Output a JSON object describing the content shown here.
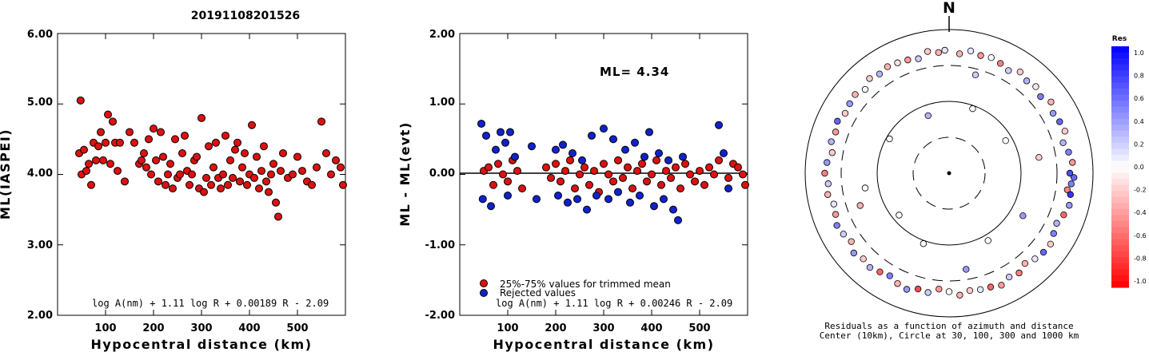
{
  "page_title": "20191108201526",
  "chart_data": [
    {
      "type": "scatter",
      "xlabel": "Hypocentral distance (km)",
      "ylabel": "ML(IASPEI)",
      "xlim": [
        0,
        600
      ],
      "ylim": [
        2.0,
        6.0
      ],
      "x_ticks": [
        "100",
        "200",
        "300",
        "400",
        "500"
      ],
      "y_ticks": [
        "2.00",
        "3.00",
        "4.00",
        "5.00",
        "6.00"
      ],
      "formula": "log A(nm) + 1.11 log R + 0.00189 R - 2.09",
      "marker_color": "#dd1111",
      "series": [
        {
          "x": [
            45,
            48,
            50,
            55,
            60,
            65,
            70,
            75,
            80,
            85,
            90,
            95,
            100,
            105,
            110,
            115,
            120,
            125,
            130,
            140,
            150,
            160,
            170,
            175,
            180,
            185,
            190,
            195,
            200,
            205,
            210,
            215,
            220,
            225,
            230,
            235,
            240,
            245,
            250,
            255,
            260,
            265,
            270,
            275,
            280,
            285,
            290,
            295,
            300,
            305,
            310,
            315,
            320,
            325,
            330,
            335,
            340,
            345,
            350,
            355,
            360,
            365,
            370,
            375,
            380,
            385,
            390,
            395,
            400,
            405,
            410,
            415,
            420,
            425,
            430,
            435,
            440,
            445,
            450,
            455,
            460,
            465,
            470,
            480,
            490,
            500,
            510,
            520,
            530,
            540,
            550,
            560,
            570,
            580,
            590,
            595
          ],
          "y": [
            4.3,
            5.05,
            4.0,
            4.35,
            4.05,
            4.15,
            3.85,
            4.45,
            4.2,
            4.4,
            4.6,
            4.2,
            4.45,
            4.85,
            4.15,
            4.75,
            4.45,
            4.05,
            4.45,
            3.9,
            4.6,
            4.45,
            4.15,
            4.2,
            4.3,
            4.1,
            4.5,
            4.0,
            4.65,
            4.2,
            3.9,
            4.6,
            4.25,
            3.85,
            4.0,
            4.15,
            3.8,
            4.5,
            3.95,
            4.0,
            4.3,
            4.55,
            4.05,
            3.85,
            4.0,
            4.2,
            4.25,
            3.8,
            4.8,
            3.75,
            3.95,
            4.4,
            3.85,
            4.1,
            4.45,
            3.95,
            3.8,
            4.0,
            4.55,
            3.85,
            4.2,
            3.95,
            4.35,
            4.45,
            3.9,
            4.1,
            4.3,
            3.85,
            4.0,
            4.7,
            3.95,
            4.25,
            3.8,
            4.05,
            4.4,
            3.9,
            3.75,
            4.0,
            4.15,
            3.6,
            3.4,
            4.05,
            4.3,
            3.95,
            4.0,
            4.25,
            4.05,
            3.9,
            3.85,
            4.1,
            4.75,
            4.3,
            4.0,
            4.2,
            4.1,
            3.85
          ]
        }
      ]
    },
    {
      "type": "scatter",
      "xlabel": "Hypocentral distance (km)",
      "ylabel": "ML - ML(evt)",
      "xlim": [
        0,
        600
      ],
      "ylim": [
        -2.0,
        2.0
      ],
      "x_ticks": [
        "100",
        "200",
        "300",
        "400",
        "500"
      ],
      "y_ticks": [
        "-2.00",
        "-1.00",
        "0.00",
        "1.00",
        "2.00"
      ],
      "annotation": "ML= 4.34",
      "formula": "log A(nm) + 1.11 log R + 0.00246 R - 2.09",
      "legend": [
        "25%-75% values for trimmed mean",
        "Rejected values"
      ],
      "legend_position": "bottom-left",
      "series": [
        {
          "name": "25%-75% values for trimmed mean",
          "color": "#dd1111",
          "x": [
            50,
            60,
            70,
            80,
            90,
            100,
            110,
            120,
            130,
            180,
            190,
            200,
            210,
            220,
            230,
            240,
            250,
            260,
            270,
            280,
            290,
            300,
            310,
            320,
            330,
            340,
            350,
            360,
            370,
            380,
            390,
            400,
            410,
            420,
            430,
            440,
            450,
            460,
            470,
            480,
            490,
            500,
            510,
            520,
            530,
            540,
            560,
            570,
            580,
            590,
            595
          ],
          "y": [
            0.05,
            0.1,
            -0.15,
            0.15,
            0.0,
            -0.1,
            0.2,
            0.05,
            -0.2,
            0.1,
            -0.05,
            0.15,
            -0.1,
            0.05,
            0.2,
            -0.2,
            0.0,
            0.1,
            -0.15,
            0.05,
            -0.25,
            0.15,
            0.0,
            -0.1,
            0.2,
            -0.05,
            0.1,
            -0.2,
            0.05,
            0.15,
            -0.1,
            0.0,
            0.2,
            -0.15,
            0.05,
            -0.05,
            0.1,
            -0.2,
            0.15,
            0.0,
            -0.1,
            0.05,
            -0.15,
            0.1,
            0.0,
            0.2,
            -0.05,
            0.15,
            0.1,
            0.0,
            -0.15
          ]
        },
        {
          "name": "Rejected values",
          "color": "#1122cc",
          "x": [
            45,
            48,
            55,
            65,
            75,
            85,
            95,
            100,
            105,
            115,
            150,
            160,
            200,
            205,
            215,
            225,
            235,
            245,
            255,
            265,
            275,
            285,
            300,
            310,
            320,
            330,
            345,
            355,
            365,
            375,
            385,
            395,
            405,
            415,
            425,
            435,
            445,
            455,
            465,
            540,
            550,
            560
          ],
          "y": [
            0.72,
            -0.35,
            0.55,
            -0.45,
            0.35,
            0.6,
            0.45,
            -0.3,
            0.6,
            0.25,
            0.4,
            -0.35,
            0.35,
            -0.3,
            0.42,
            -0.4,
            0.3,
            -0.35,
            0.2,
            -0.5,
            0.55,
            -0.3,
            0.65,
            -0.35,
            0.5,
            -0.25,
            0.35,
            -0.4,
            0.45,
            -0.3,
            0.25,
            0.6,
            -0.45,
            0.3,
            -0.35,
            0.2,
            -0.5,
            -0.65,
            0.25,
            0.7,
            0.3,
            -0.2
          ]
        }
      ]
    },
    {
      "type": "scatter",
      "subtype": "polar",
      "north_label": "N",
      "caption_lines": [
        "Residuals as a function of azimuth and distance",
        "Center (10km), Circle at 30, 100, 300 and 1000 km"
      ],
      "colorbar_title": "Res",
      "colorbar_ticks": [
        "1.0",
        "0.8",
        "0.6",
        "0.4",
        "0.2",
        "0.0",
        "-0.2",
        "-0.4",
        "-0.6",
        "-0.8",
        "-1.0"
      ],
      "colorbar_range": [
        -1.0,
        1.0
      ],
      "color_negative": "#ff0000",
      "color_positive": "#0000ff",
      "stations": {
        "azimuth_deg": [
          5,
          10,
          15,
          20,
          25,
          30,
          35,
          40,
          45,
          50,
          55,
          60,
          65,
          70,
          75,
          80,
          85,
          90,
          92,
          95,
          98,
          100,
          105,
          110,
          115,
          120,
          125,
          130,
          135,
          140,
          145,
          150,
          155,
          160,
          165,
          170,
          175,
          180,
          185,
          190,
          195,
          200,
          205,
          210,
          215,
          220,
          225,
          230,
          235,
          240,
          245,
          250,
          255,
          260,
          265,
          270,
          275,
          280,
          285,
          290,
          295,
          300,
          305,
          310,
          315,
          320,
          325,
          330,
          335,
          340,
          345,
          350,
          355,
          358,
          20,
          60,
          120,
          150,
          200,
          230,
          260,
          300,
          340,
          15,
          80,
          170,
          250
        ],
        "distance_km": [
          450,
          520,
          480,
          500,
          470,
          430,
          510,
          460,
          490,
          440,
          520,
          450,
          480,
          500,
          420,
          470,
          510,
          460,
          530,
          490,
          440,
          500,
          520,
          480,
          430,
          460,
          510,
          500,
          470,
          420,
          480,
          450,
          510,
          470,
          460,
          440,
          490,
          430,
          400,
          470,
          450,
          510,
          480,
          430,
          460,
          500,
          470,
          520,
          440,
          480,
          510,
          460,
          440,
          500,
          470,
          520,
          490,
          430,
          480,
          460,
          500,
          450,
          470,
          490,
          430,
          510,
          470,
          500,
          480,
          460,
          430,
          510,
          470,
          500,
          90,
          80,
          150,
          120,
          110,
          80,
          150,
          90,
          70,
          250,
          180,
          220,
          200
        ],
        "residual": [
          -0.3,
          0.1,
          -0.4,
          0.0,
          -0.5,
          0.2,
          -0.2,
          0.3,
          -0.1,
          0.5,
          -0.3,
          0.4,
          0.6,
          -0.2,
          0.3,
          0.5,
          -0.4,
          0.7,
          0.6,
          0.5,
          -0.5,
          0.8,
          0.4,
          -0.6,
          0.3,
          0.5,
          -0.2,
          0.6,
          0.1,
          -0.3,
          -0.5,
          0.2,
          -0.4,
          -0.6,
          0.1,
          -0.2,
          -0.3,
          0.0,
          -0.4,
          0.2,
          -0.7,
          0.4,
          -0.3,
          0.5,
          -0.6,
          0.3,
          -0.2,
          0.4,
          -0.3,
          0.2,
          0.5,
          -0.4,
          0.1,
          -0.3,
          0.2,
          -0.5,
          0.4,
          -0.2,
          0.3,
          -0.4,
          0.6,
          -0.2,
          0.4,
          -0.3,
          0.0,
          -0.2,
          0.3,
          -0.3,
          -0.1,
          -0.4,
          0.2,
          -0.2,
          -0.3,
          0.1,
          0.0,
          0.0,
          0.4,
          0.0,
          0.0,
          0.0,
          0.0,
          0.0,
          0.3,
          0.2,
          -0.2,
          0.4,
          -0.3
        ]
      }
    }
  ]
}
